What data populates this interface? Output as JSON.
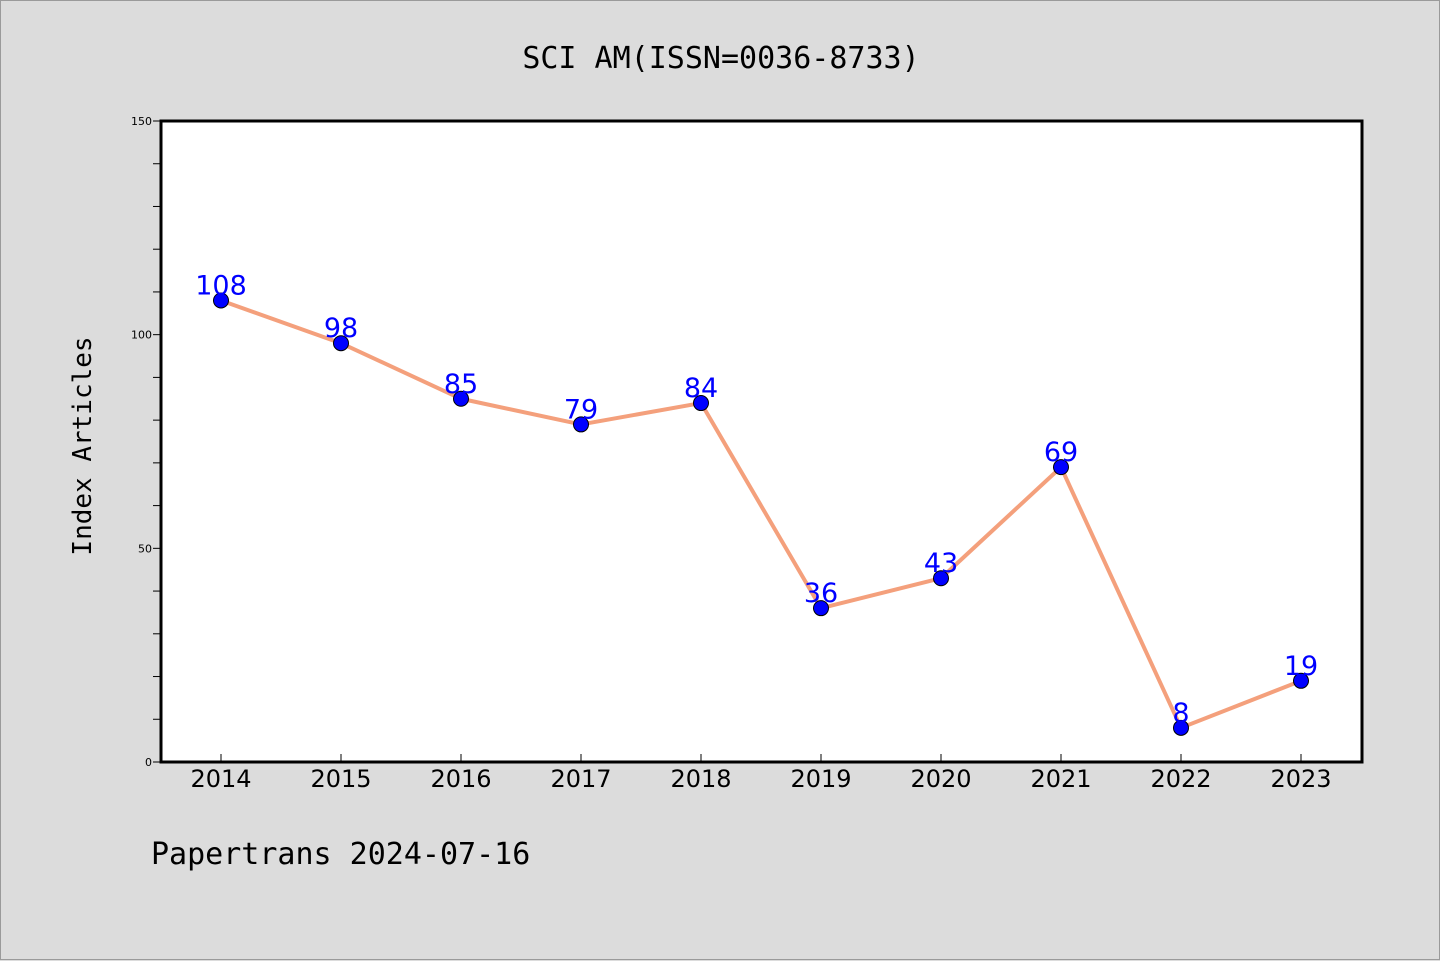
{
  "chart_data": {
    "type": "line",
    "title": "SCI AM(ISSN=0036-8733)",
    "xlabel": "",
    "ylabel": "Index Articles",
    "categories": [
      "2014",
      "2015",
      "2016",
      "2017",
      "2018",
      "2019",
      "2020",
      "2021",
      "2022",
      "2023"
    ],
    "values": [
      108,
      98,
      85,
      79,
      84,
      36,
      43,
      69,
      8,
      19
    ],
    "data_labels": [
      "108",
      "98",
      "85",
      "79",
      "84",
      "36",
      "43",
      "69",
      "8",
      "19"
    ],
    "ylim": [
      0,
      150
    ],
    "yticks": [
      0,
      50,
      100,
      150
    ],
    "ytick_labels": [
      "0",
      "50",
      "100",
      "150"
    ],
    "grid": false,
    "line_color": "#f4a07c",
    "marker_color": "#0000ff",
    "label_color": "#0000ff",
    "background_color": "#dcdcdc",
    "plot_background": "#ffffff"
  },
  "footer": {
    "text": "Papertrans 2024-07-16"
  }
}
